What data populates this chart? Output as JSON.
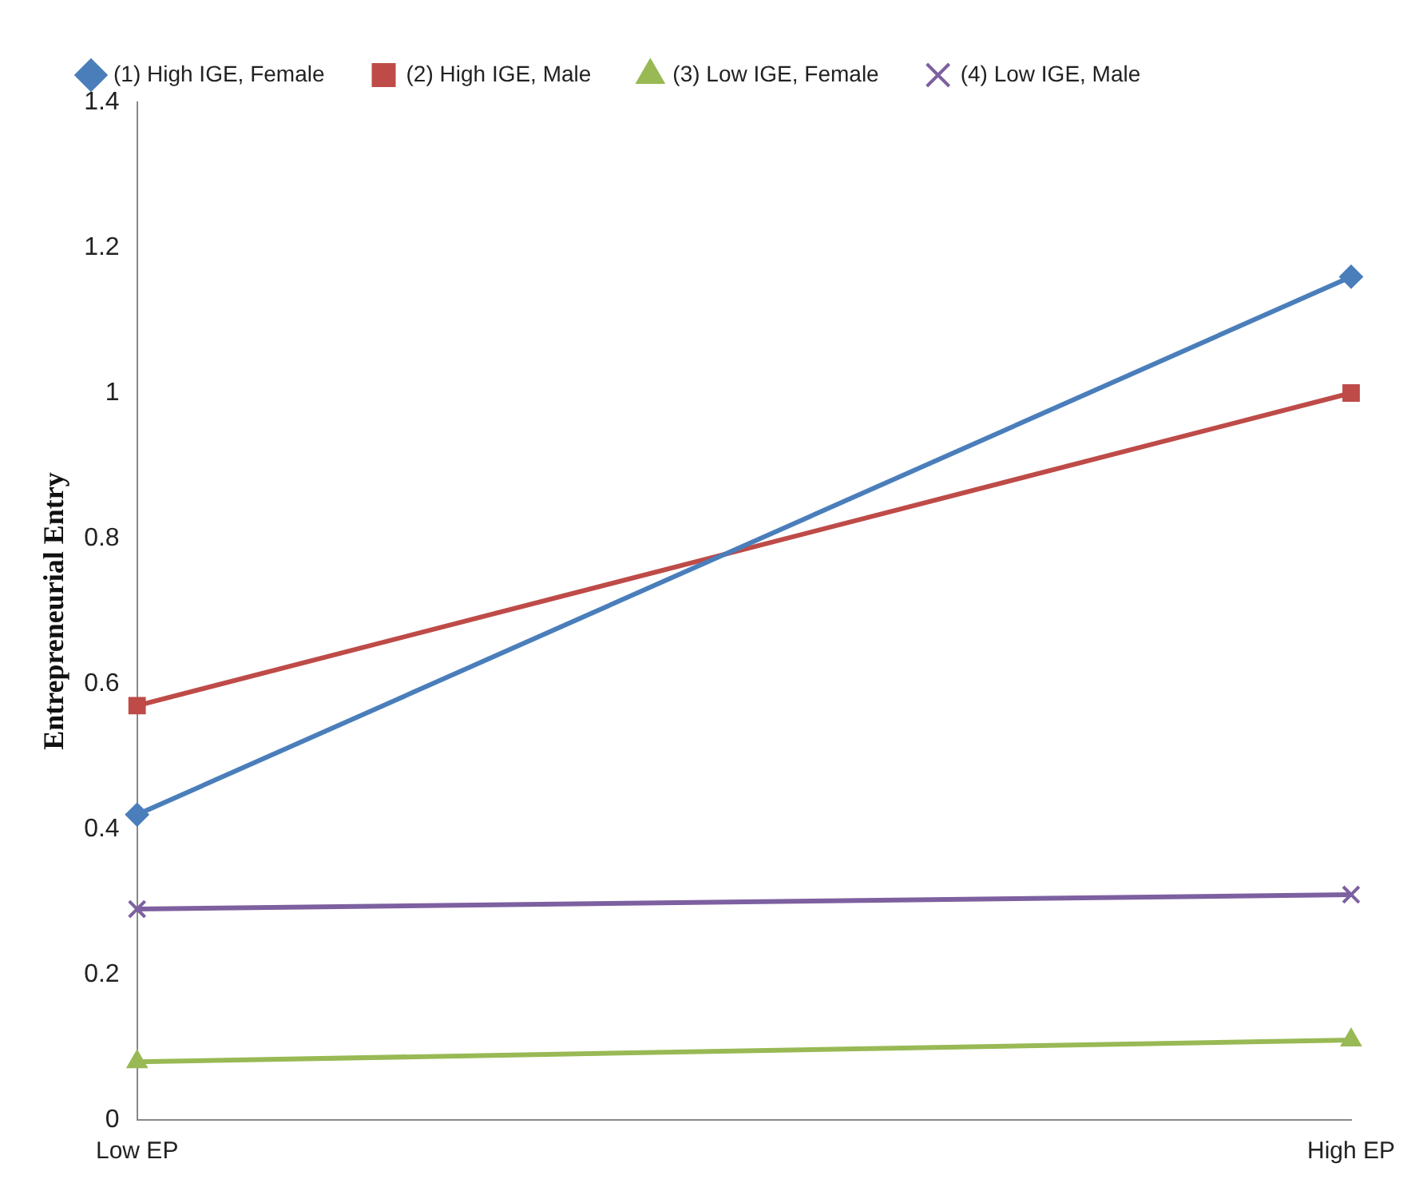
{
  "chart_data": {
    "type": "line",
    "ylabel": "Entrepreneurial Entry",
    "categories": [
      "Low EP",
      "High EP"
    ],
    "series": [
      {
        "name": "(1) High IGE, Female",
        "color": "#4a7ebb",
        "marker": "diamond",
        "values": [
          0.42,
          1.16
        ]
      },
      {
        "name": "(2) High IGE, Male",
        "color": "#be4b48",
        "marker": "square",
        "values": [
          0.57,
          1.0
        ]
      },
      {
        "name": "(3) Low IGE, Female",
        "color": "#98b954",
        "marker": "triangle",
        "values": [
          0.08,
          0.11
        ]
      },
      {
        "name": "(4) Low IGE, Male",
        "color": "#7d60a0",
        "marker": "cross",
        "values": [
          0.29,
          0.31
        ]
      }
    ],
    "ylim": [
      0,
      1.4
    ],
    "yticks": [
      0,
      0.2,
      0.4,
      0.6,
      0.8,
      1,
      1.2,
      1.4
    ],
    "grid": false,
    "legend": "top",
    "line_style": "solid"
  }
}
